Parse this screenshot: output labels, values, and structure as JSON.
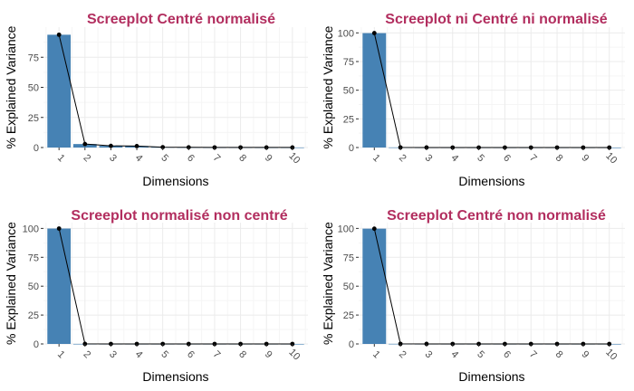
{
  "colors": {
    "title": "#b22e5f",
    "bar": "#4682b4",
    "grid_major": "#ebebeb",
    "grid_minor": "#f5f5f5",
    "line": "#000000",
    "tick_text": "#4d4d4d"
  },
  "chart_data": [
    {
      "type": "bar",
      "title": "Screeplot Centré normalisé",
      "xlabel": "Dimensions",
      "ylabel": "% Explained Variance",
      "categories": [
        "1",
        "2",
        "3",
        "4",
        "5",
        "6",
        "7",
        "8",
        "9",
        "10"
      ],
      "values": [
        93.7,
        2.9,
        1.4,
        1.2,
        0.3,
        0.2,
        0.1,
        0.1,
        0.05,
        0.05
      ],
      "ylim": [
        0,
        100
      ],
      "yticks": [
        0,
        25,
        50,
        75
      ],
      "grid": true,
      "line_overlay": true
    },
    {
      "type": "bar",
      "title": "Screeplot ni Centré ni normalisé",
      "xlabel": "Dimensions",
      "ylabel": "% Explained Variance",
      "categories": [
        "1",
        "2",
        "3",
        "4",
        "5",
        "6",
        "7",
        "8",
        "9",
        "10"
      ],
      "values": [
        99.8,
        0.1,
        0.03,
        0.02,
        0.01,
        0.01,
        0.01,
        0.01,
        0.005,
        0.005
      ],
      "ylim": [
        0,
        105
      ],
      "yticks": [
        0,
        25,
        50,
        75,
        100
      ],
      "grid": true,
      "line_overlay": true
    },
    {
      "type": "bar",
      "title": "Screeplot normalisé non centré",
      "xlabel": "Dimensions",
      "ylabel": "% Explained Variance",
      "categories": [
        "1",
        "2",
        "3",
        "4",
        "5",
        "6",
        "7",
        "8",
        "9",
        "10"
      ],
      "values": [
        99.9,
        0.05,
        0.02,
        0.01,
        0.01,
        0.005,
        0.005,
        0.005,
        0.003,
        0.002
      ],
      "ylim": [
        0,
        105
      ],
      "yticks": [
        0,
        25,
        50,
        75,
        100
      ],
      "grid": true,
      "line_overlay": true
    },
    {
      "type": "bar",
      "title": "Screeplot Centré non normalisé",
      "xlabel": "Dimensions",
      "ylabel": "% Explained Variance",
      "categories": [
        "1",
        "2",
        "3",
        "4",
        "5",
        "6",
        "7",
        "8",
        "9",
        "10"
      ],
      "values": [
        99.8,
        0.1,
        0.03,
        0.02,
        0.01,
        0.01,
        0.01,
        0.01,
        0.005,
        0.005
      ],
      "ylim": [
        0,
        105
      ],
      "yticks": [
        0,
        25,
        50,
        75,
        100
      ],
      "grid": true,
      "line_overlay": true
    }
  ]
}
